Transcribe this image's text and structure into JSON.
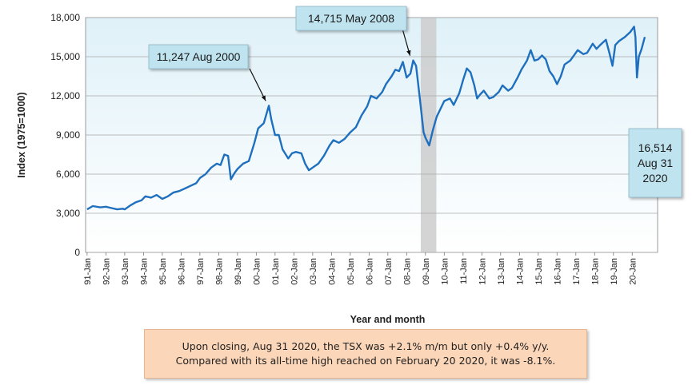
{
  "chart_data": {
    "type": "line",
    "ylabel": "Index (1975=1000)",
    "xlabel": "Year and month",
    "ylim": [
      0,
      18000
    ],
    "yticks": [
      0,
      3000,
      6000,
      9000,
      12000,
      15000,
      18000
    ],
    "ytick_labels": [
      "0",
      "3,000",
      "6,000",
      "9,000",
      "12,000",
      "15,000",
      "18,000"
    ],
    "x_tick_labels": [
      "91-Jan",
      "92-Jan",
      "93-Jan",
      "94-Jan",
      "95-Jan",
      "96-Jan",
      "97-Jan",
      "98-Jan",
      "99-Jan",
      "00-Jan",
      "01-Jan",
      "02-Jan",
      "03-Jan",
      "04-Jan",
      "05-Jan",
      "06-Jan",
      "07-Jan",
      "08-Jan",
      "09-Jan",
      "10-Jan",
      "11-Jan",
      "12-Jan",
      "13-Jan",
      "14-Jan",
      "15-Jan",
      "16-Jan",
      "17-Jan",
      "18-Jan",
      "19-Jan",
      "20-Jan"
    ],
    "x_start_year": 1991,
    "x_end_year": 2020.67,
    "grid": true,
    "line_color": "#1f6fbf",
    "plot_gradient_top": "#dff1f8",
    "plot_gradient_bottom": "#ffffff",
    "recession_band": {
      "from": 2008.75,
      "to": 2009.58,
      "color": "#cccccc"
    },
    "series": [
      {
        "points": [
          [
            1991.0,
            3300
          ],
          [
            1991.3,
            3550
          ],
          [
            1991.7,
            3450
          ],
          [
            1992.0,
            3500
          ],
          [
            1992.3,
            3400
          ],
          [
            1992.6,
            3300
          ],
          [
            1992.9,
            3350
          ],
          [
            1993.0,
            3300
          ],
          [
            1993.3,
            3600
          ],
          [
            1993.6,
            3850
          ],
          [
            1993.9,
            4000
          ],
          [
            1994.1,
            4300
          ],
          [
            1994.4,
            4200
          ],
          [
            1994.7,
            4400
          ],
          [
            1995.0,
            4100
          ],
          [
            1995.3,
            4300
          ],
          [
            1995.6,
            4600
          ],
          [
            1995.9,
            4700
          ],
          [
            1996.2,
            4900
          ],
          [
            1996.5,
            5100
          ],
          [
            1996.8,
            5300
          ],
          [
            1997.0,
            5700
          ],
          [
            1997.3,
            6000
          ],
          [
            1997.6,
            6500
          ],
          [
            1997.9,
            6800
          ],
          [
            1998.1,
            6700
          ],
          [
            1998.3,
            7500
          ],
          [
            1998.5,
            7400
          ],
          [
            1998.65,
            5600
          ],
          [
            1998.85,
            6100
          ],
          [
            1999.0,
            6400
          ],
          [
            1999.3,
            6800
          ],
          [
            1999.6,
            7000
          ],
          [
            1999.9,
            8400
          ],
          [
            2000.1,
            9500
          ],
          [
            2000.4,
            9900
          ],
          [
            2000.67,
            11247
          ],
          [
            2000.8,
            10200
          ],
          [
            2001.0,
            9000
          ],
          [
            2001.2,
            9000
          ],
          [
            2001.4,
            7900
          ],
          [
            2001.7,
            7200
          ],
          [
            2001.9,
            7600
          ],
          [
            2002.1,
            7700
          ],
          [
            2002.4,
            7600
          ],
          [
            2002.6,
            6800
          ],
          [
            2002.8,
            6300
          ],
          [
            2003.0,
            6500
          ],
          [
            2003.3,
            6800
          ],
          [
            2003.6,
            7400
          ],
          [
            2003.9,
            8200
          ],
          [
            2004.1,
            8600
          ],
          [
            2004.4,
            8400
          ],
          [
            2004.7,
            8700
          ],
          [
            2005.0,
            9200
          ],
          [
            2005.3,
            9600
          ],
          [
            2005.6,
            10500
          ],
          [
            2005.9,
            11200
          ],
          [
            2006.1,
            12000
          ],
          [
            2006.4,
            11800
          ],
          [
            2006.7,
            12300
          ],
          [
            2006.9,
            12900
          ],
          [
            2007.2,
            13500
          ],
          [
            2007.4,
            14000
          ],
          [
            2007.6,
            13900
          ],
          [
            2007.8,
            14600
          ],
          [
            2008.0,
            13400
          ],
          [
            2008.2,
            13700
          ],
          [
            2008.35,
            14715
          ],
          [
            2008.5,
            14300
          ],
          [
            2008.7,
            11800
          ],
          [
            2008.9,
            9200
          ],
          [
            2009.0,
            8800
          ],
          [
            2009.2,
            8200
          ],
          [
            2009.4,
            9400
          ],
          [
            2009.6,
            10400
          ],
          [
            2009.8,
            11000
          ],
          [
            2010.0,
            11600
          ],
          [
            2010.3,
            11800
          ],
          [
            2010.5,
            11300
          ],
          [
            2010.8,
            12200
          ],
          [
            2011.0,
            13200
          ],
          [
            2011.2,
            14100
          ],
          [
            2011.4,
            13800
          ],
          [
            2011.6,
            12800
          ],
          [
            2011.75,
            11800
          ],
          [
            2011.9,
            12100
          ],
          [
            2012.1,
            12400
          ],
          [
            2012.4,
            11800
          ],
          [
            2012.6,
            11900
          ],
          [
            2012.9,
            12300
          ],
          [
            2013.1,
            12800
          ],
          [
            2013.4,
            12400
          ],
          [
            2013.6,
            12600
          ],
          [
            2013.9,
            13400
          ],
          [
            2014.1,
            14000
          ],
          [
            2014.4,
            14700
          ],
          [
            2014.6,
            15500
          ],
          [
            2014.8,
            14700
          ],
          [
            2015.0,
            14800
          ],
          [
            2015.2,
            15100
          ],
          [
            2015.4,
            14800
          ],
          [
            2015.6,
            13900
          ],
          [
            2015.8,
            13500
          ],
          [
            2016.0,
            12900
          ],
          [
            2016.2,
            13500
          ],
          [
            2016.4,
            14400
          ],
          [
            2016.7,
            14700
          ],
          [
            2016.9,
            15100
          ],
          [
            2017.1,
            15500
          ],
          [
            2017.4,
            15200
          ],
          [
            2017.6,
            15300
          ],
          [
            2017.9,
            16000
          ],
          [
            2018.1,
            15600
          ],
          [
            2018.3,
            15900
          ],
          [
            2018.6,
            16300
          ],
          [
            2018.8,
            15200
          ],
          [
            2018.95,
            14300
          ],
          [
            2019.1,
            15900
          ],
          [
            2019.3,
            16200
          ],
          [
            2019.6,
            16500
          ],
          [
            2019.9,
            16900
          ],
          [
            2020.1,
            17300
          ],
          [
            2020.17,
            16500
          ],
          [
            2020.25,
            13400
          ],
          [
            2020.35,
            15000
          ],
          [
            2020.5,
            15600
          ],
          [
            2020.67,
            16514
          ]
        ]
      }
    ],
    "annotations": [
      {
        "id": "peak2000",
        "text": "11,247 Aug 2000",
        "x": 2000.67,
        "y": 11247
      },
      {
        "id": "peak2008",
        "text": "14,715 May 2008",
        "x": 2008.35,
        "y": 14715
      },
      {
        "id": "latest",
        "lines": [
          "16,514",
          "Aug 31",
          "2020"
        ],
        "x": 2020.67,
        "y": 16514
      }
    ],
    "annotation_fill": "#bfe3ef"
  },
  "footnote": "Upon closing, Aug 31 2020, the TSX was +2.1% m/m but only +0.4% y/y. Compared with its all-time high reached on February 20 2020, it was -8.1%."
}
